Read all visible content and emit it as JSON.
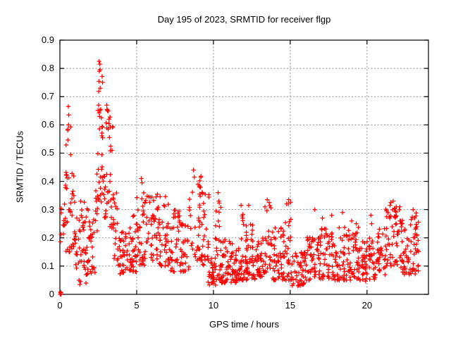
{
  "chart_data": {
    "type": "scatter",
    "title": "Day 195 of 2023, SRMTID for receiver flgp",
    "xlabel": "GPS time / hours",
    "ylabel": "SRMTID / TECUs",
    "xlim": [
      0,
      24
    ],
    "ylim": [
      0,
      0.9
    ],
    "xticks": [
      0,
      5,
      10,
      15,
      20
    ],
    "xtick_labels": [
      "0",
      "5",
      "10",
      "15",
      "20"
    ],
    "yticks": [
      0,
      0.1,
      0.2,
      0.3,
      0.4,
      0.5,
      0.6,
      0.7,
      0.8,
      0.9
    ],
    "ytick_labels": [
      "0",
      "0.1",
      "0.2",
      "0.3",
      "0.4",
      "0.5",
      "0.6",
      "0.7",
      "0.8",
      "0.9"
    ],
    "grid": true,
    "legend": false,
    "marker": "plus",
    "colors": {
      "marker": "#ff0000",
      "grid": "#8a8a8a",
      "frame": "#000000",
      "text": "#000000",
      "background": "#ffffff"
    },
    "x_data_range": [
      0,
      23.35
    ],
    "seed": 195,
    "envelope_bins": {
      "columns": [
        "x_start",
        "x_end",
        "count",
        "y_min",
        "y_max",
        "skew"
      ],
      "rows": [
        [
          0.0,
          0.3,
          8,
          0.18,
          0.31,
          1.0
        ],
        [
          0.3,
          0.9,
          38,
          0.15,
          0.62,
          1.5
        ],
        [
          0.9,
          1.6,
          40,
          0.09,
          0.35,
          1.4
        ],
        [
          1.6,
          2.3,
          40,
          0.07,
          0.31,
          1.4
        ],
        [
          2.3,
          2.45,
          10,
          0.22,
          0.45,
          1.2
        ],
        [
          2.45,
          2.8,
          30,
          0.3,
          0.83,
          1.1
        ],
        [
          2.8,
          3.0,
          12,
          0.18,
          0.42,
          1.2
        ],
        [
          3.0,
          3.45,
          28,
          0.2,
          0.66,
          1.3
        ],
        [
          3.45,
          3.8,
          22,
          0.12,
          0.36,
          1.4
        ],
        [
          3.8,
          4.4,
          36,
          0.07,
          0.24,
          1.3
        ],
        [
          4.4,
          5.0,
          36,
          0.08,
          0.28,
          1.5
        ],
        [
          5.0,
          5.5,
          30,
          0.1,
          0.4,
          1.6
        ],
        [
          5.5,
          6.4,
          48,
          0.12,
          0.37,
          1.5
        ],
        [
          6.4,
          7.2,
          42,
          0.1,
          0.35,
          1.6
        ],
        [
          7.2,
          7.8,
          32,
          0.08,
          0.3,
          1.5
        ],
        [
          7.8,
          8.4,
          32,
          0.08,
          0.26,
          1.4
        ],
        [
          8.4,
          9.3,
          42,
          0.12,
          0.43,
          1.7
        ],
        [
          9.3,
          9.7,
          20,
          0.1,
          0.36,
          1.5
        ],
        [
          9.6,
          10.15,
          30,
          0.03,
          0.13,
          1.2
        ],
        [
          10.1,
          10.5,
          24,
          0.05,
          0.36,
          1.8
        ],
        [
          10.5,
          11.5,
          70,
          0.04,
          0.2,
          1.4
        ],
        [
          11.5,
          12.0,
          32,
          0.05,
          0.3,
          1.8
        ],
        [
          12.0,
          12.7,
          50,
          0.05,
          0.25,
          1.6
        ],
        [
          12.7,
          13.2,
          30,
          0.06,
          0.22,
          1.5
        ],
        [
          13.2,
          13.8,
          32,
          0.07,
          0.33,
          1.8
        ],
        [
          13.8,
          14.6,
          50,
          0.05,
          0.24,
          1.5
        ],
        [
          14.6,
          15.1,
          30,
          0.05,
          0.33,
          1.8
        ],
        [
          15.1,
          16.0,
          48,
          0.03,
          0.15,
          1.3
        ],
        [
          16.0,
          16.6,
          32,
          0.05,
          0.22,
          1.5
        ],
        [
          16.6,
          17.6,
          55,
          0.05,
          0.25,
          1.6
        ],
        [
          17.6,
          18.6,
          55,
          0.05,
          0.25,
          1.6
        ],
        [
          18.6,
          19.6,
          55,
          0.05,
          0.24,
          1.6
        ],
        [
          19.6,
          20.6,
          55,
          0.04,
          0.2,
          1.5
        ],
        [
          20.6,
          21.2,
          32,
          0.06,
          0.24,
          1.5
        ],
        [
          21.2,
          22.2,
          55,
          0.1,
          0.32,
          1.3
        ],
        [
          22.2,
          22.8,
          38,
          0.07,
          0.28,
          1.4
        ],
        [
          22.8,
          23.35,
          38,
          0.07,
          0.3,
          1.3
        ]
      ]
    },
    "notable_points": [
      [
        0.02,
        0.0
      ],
      [
        0.05,
        0.005
      ],
      [
        0.08,
        0.0
      ],
      [
        0.03,
        0.008
      ],
      [
        0.07,
        0.006
      ],
      [
        0.55,
        0.665
      ],
      [
        0.58,
        0.635
      ],
      [
        0.56,
        0.6
      ],
      [
        0.52,
        0.585
      ],
      [
        1.25,
        0.05
      ],
      [
        1.3,
        0.035
      ],
      [
        1.34,
        0.045
      ],
      [
        1.7,
        0.04
      ],
      [
        2.55,
        0.825
      ],
      [
        2.6,
        0.815
      ],
      [
        2.57,
        0.79
      ],
      [
        2.62,
        0.73
      ],
      [
        2.52,
        0.67
      ],
      [
        2.66,
        0.655
      ],
      [
        2.7,
        0.625
      ],
      [
        3.05,
        0.67
      ],
      [
        3.1,
        0.65
      ],
      [
        3.2,
        0.62
      ],
      [
        3.15,
        0.585
      ],
      [
        5.3,
        0.41
      ],
      [
        5.35,
        0.395
      ],
      [
        8.7,
        0.44
      ],
      [
        8.75,
        0.415
      ],
      [
        9.0,
        0.39
      ],
      [
        9.1,
        0.38
      ],
      [
        10.3,
        0.36
      ],
      [
        10.35,
        0.33
      ],
      [
        11.8,
        0.315
      ],
      [
        12.3,
        0.315
      ],
      [
        13.5,
        0.335
      ],
      [
        14.9,
        0.335
      ],
      [
        16.6,
        0.3
      ],
      [
        17.1,
        0.27
      ],
      [
        17.7,
        0.28
      ],
      [
        18.4,
        0.29
      ],
      [
        19.0,
        0.26
      ],
      [
        19.3,
        0.25
      ],
      [
        20.25,
        0.28
      ],
      [
        20.3,
        0.25
      ],
      [
        21.55,
        0.325
      ],
      [
        21.5,
        0.315
      ],
      [
        21.9,
        0.31
      ],
      [
        21.7,
        0.33
      ],
      [
        23.0,
        0.3
      ],
      [
        23.1,
        0.27
      ]
    ]
  }
}
